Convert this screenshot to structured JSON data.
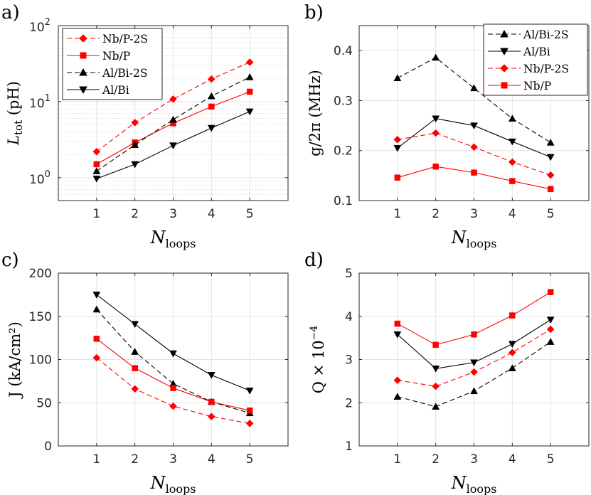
{
  "chart_data": [
    {
      "panel": "a)",
      "type": "line",
      "xlabel": {
        "main": "N",
        "sub": "loops"
      },
      "ylabel": {
        "main": "L",
        "sub": "tot",
        "rest": " (pH)"
      },
      "x": [
        1,
        2,
        3,
        4,
        5
      ],
      "xlim": [
        0,
        6
      ],
      "xticks": [
        "1",
        "2",
        "3",
        "4",
        "5"
      ],
      "yscale": "log",
      "ylim": [
        0.5,
        100
      ],
      "yticks": [
        {
          "value": 1,
          "base": "10",
          "exp": "0"
        },
        {
          "value": 10,
          "base": "10",
          "exp": "1"
        },
        {
          "value": 100,
          "base": "10",
          "exp": "2"
        }
      ],
      "grid": true,
      "minor_grid": true,
      "legend": "top-left",
      "series": [
        {
          "name": "Nb/P-2S",
          "color": "#ff0000",
          "dashed": true,
          "marker": "diamond",
          "values": [
            2.2,
            5.3,
            10.8,
            19.8,
            33
          ]
        },
        {
          "name": "Nb/P",
          "color": "#ff0000",
          "dashed": false,
          "marker": "square",
          "values": [
            1.5,
            2.9,
            5.2,
            8.6,
            13.5
          ]
        },
        {
          "name": "Al/Bi-2S",
          "color": "#000000",
          "dashed": true,
          "marker": "triangle-up",
          "values": [
            1.22,
            2.7,
            5.8,
            11.8,
            21
          ]
        },
        {
          "name": "Al/Bi",
          "color": "#000000",
          "dashed": false,
          "marker": "triangle-down",
          "values": [
            0.97,
            1.5,
            2.65,
            4.5,
            7.4
          ]
        }
      ]
    },
    {
      "panel": "b)",
      "type": "line",
      "xlabel": {
        "main": "N",
        "sub": "loops"
      },
      "ylabel": {
        "main": "g/2π (MHz)"
      },
      "x": [
        1,
        2,
        3,
        4,
        5
      ],
      "xlim": [
        0,
        6
      ],
      "xticks": [
        "1",
        "2",
        "3",
        "4",
        "5"
      ],
      "ylim": [
        0.1,
        0.45
      ],
      "yticks": [
        "0.1",
        "0.2",
        "0.3",
        "0.4"
      ],
      "grid": true,
      "legend": "top-right",
      "series": [
        {
          "name": "Al/Bi-2S",
          "color": "#000000",
          "dashed": true,
          "marker": "triangle-up",
          "values": [
            0.345,
            0.386,
            0.325,
            0.264,
            0.216
          ]
        },
        {
          "name": "Al/Bi",
          "color": "#000000",
          "dashed": false,
          "marker": "triangle-down",
          "values": [
            0.205,
            0.264,
            0.25,
            0.218,
            0.187
          ]
        },
        {
          "name": "Nb/P-2S",
          "color": "#ff0000",
          "dashed": true,
          "marker": "diamond",
          "values": [
            0.222,
            0.235,
            0.207,
            0.177,
            0.151
          ]
        },
        {
          "name": "Nb/P",
          "color": "#ff0000",
          "dashed": false,
          "marker": "square",
          "values": [
            0.146,
            0.168,
            0.156,
            0.139,
            0.123
          ]
        }
      ]
    },
    {
      "panel": "c)",
      "type": "line",
      "xlabel": {
        "main": "N",
        "sub": "loops"
      },
      "ylabel": {
        "main": "J (kA/cm²)"
      },
      "x": [
        1,
        2,
        3,
        4,
        5
      ],
      "xlim": [
        0,
        6
      ],
      "xticks": [
        "1",
        "2",
        "3",
        "4",
        "5"
      ],
      "ylim": [
        0,
        200
      ],
      "yticks": [
        "0",
        "50",
        "100",
        "150",
        "200"
      ],
      "grid": true,
      "legend": "none",
      "series": [
        {
          "color": "#000000",
          "dashed": false,
          "marker": "triangle-down",
          "values": [
            175,
            141,
            107,
            82,
            64
          ]
        },
        {
          "color": "#000000",
          "dashed": true,
          "marker": "triangle-up",
          "values": [
            158,
            109,
            72,
            51,
            38
          ]
        },
        {
          "color": "#ff0000",
          "dashed": false,
          "marker": "square",
          "values": [
            124,
            90,
            67,
            51,
            41
          ]
        },
        {
          "color": "#ff0000",
          "dashed": true,
          "marker": "diamond",
          "values": [
            102,
            66,
            46,
            34,
            26
          ]
        }
      ]
    },
    {
      "panel": "d)",
      "type": "line",
      "xlabel": {
        "main": "N",
        "sub": "loops"
      },
      "ylabel": {
        "main": "Q × 10",
        "sup": "−4"
      },
      "x": [
        1,
        2,
        3,
        4,
        5
      ],
      "xlim": [
        0,
        6
      ],
      "xticks": [
        "1",
        "2",
        "3",
        "4",
        "5"
      ],
      "ylim": [
        1,
        5
      ],
      "yticks": [
        "1",
        "2",
        "3",
        "4",
        "5"
      ],
      "grid": true,
      "legend": "none",
      "series": [
        {
          "color": "#ff0000",
          "dashed": false,
          "marker": "square",
          "values": [
            3.83,
            3.34,
            3.58,
            4.02,
            4.56
          ]
        },
        {
          "color": "#000000",
          "dashed": false,
          "marker": "triangle-down",
          "values": [
            3.58,
            2.79,
            2.93,
            3.36,
            3.92
          ]
        },
        {
          "color": "#ff0000",
          "dashed": true,
          "marker": "diamond",
          "values": [
            2.52,
            2.38,
            2.71,
            3.16,
            3.7
          ]
        },
        {
          "color": "#000000",
          "dashed": true,
          "marker": "triangle-up",
          "values": [
            2.14,
            1.91,
            2.27,
            2.8,
            3.41
          ]
        }
      ]
    }
  ]
}
